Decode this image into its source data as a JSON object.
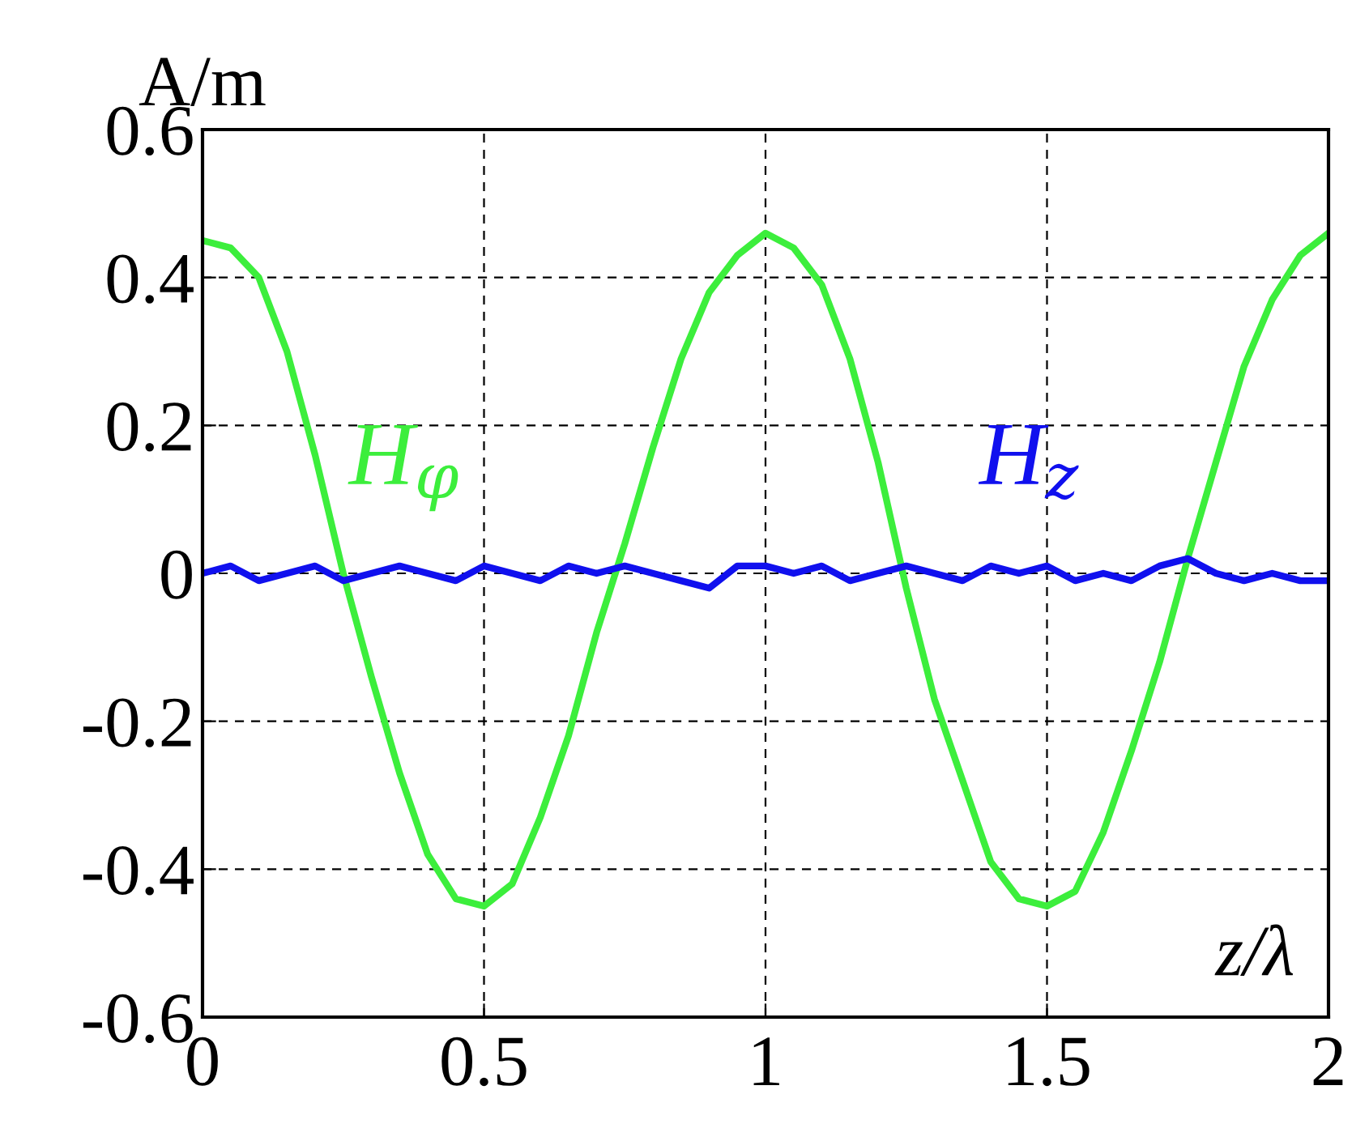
{
  "chart_data": {
    "type": "line",
    "ylabel": "A/m",
    "xlabel": "z/λ",
    "x": [
      0,
      0.05,
      0.1,
      0.15,
      0.2,
      0.25,
      0.3,
      0.35,
      0.4,
      0.45,
      0.5,
      0.55,
      0.6,
      0.65,
      0.7,
      0.75,
      0.8,
      0.85,
      0.9,
      0.95,
      1,
      1.05,
      1.1,
      1.15,
      1.2,
      1.25,
      1.3,
      1.35,
      1.4,
      1.45,
      1.5,
      1.55,
      1.6,
      1.65,
      1.7,
      1.75,
      1.8,
      1.85,
      1.9,
      1.95,
      2
    ],
    "series": [
      {
        "name": "H$_{φ}$",
        "color": "#3cee3c",
        "values": [
          0.45,
          0.44,
          0.4,
          0.3,
          0.16,
          0.0,
          -0.14,
          -0.27,
          -0.38,
          -0.44,
          -0.45,
          -0.42,
          -0.33,
          -0.22,
          -0.08,
          0.04,
          0.17,
          0.29,
          0.38,
          0.43,
          0.46,
          0.44,
          0.39,
          0.29,
          0.15,
          -0.02,
          -0.17,
          -0.28,
          -0.39,
          -0.44,
          -0.45,
          -0.43,
          -0.35,
          -0.24,
          -0.12,
          0.02,
          0.15,
          0.28,
          0.37,
          0.43,
          0.46
        ]
      },
      {
        "name": "H$_{z}$",
        "color": "#1010ee",
        "values": [
          0.0,
          0.01,
          -0.01,
          0.0,
          0.01,
          -0.01,
          0.0,
          0.01,
          0.0,
          -0.01,
          0.01,
          0.0,
          -0.01,
          0.01,
          0.0,
          0.01,
          0.0,
          -0.01,
          -0.02,
          0.01,
          0.01,
          0.0,
          0.01,
          -0.01,
          0.0,
          0.01,
          0.0,
          -0.01,
          0.01,
          0.0,
          0.01,
          -0.01,
          0.0,
          -0.01,
          0.01,
          0.02,
          0.0,
          -0.01,
          0.0,
          -0.01,
          -0.01
        ]
      }
    ],
    "xlim": [
      0,
      2
    ],
    "xticks": [
      0,
      0.5,
      1,
      1.5,
      2
    ],
    "ylim": [
      -0.6,
      0.6
    ],
    "yticks": [
      -0.6,
      -0.4,
      -0.2,
      0,
      0.2,
      0.4,
      0.6
    ],
    "grid": true,
    "line_style": "solid"
  }
}
